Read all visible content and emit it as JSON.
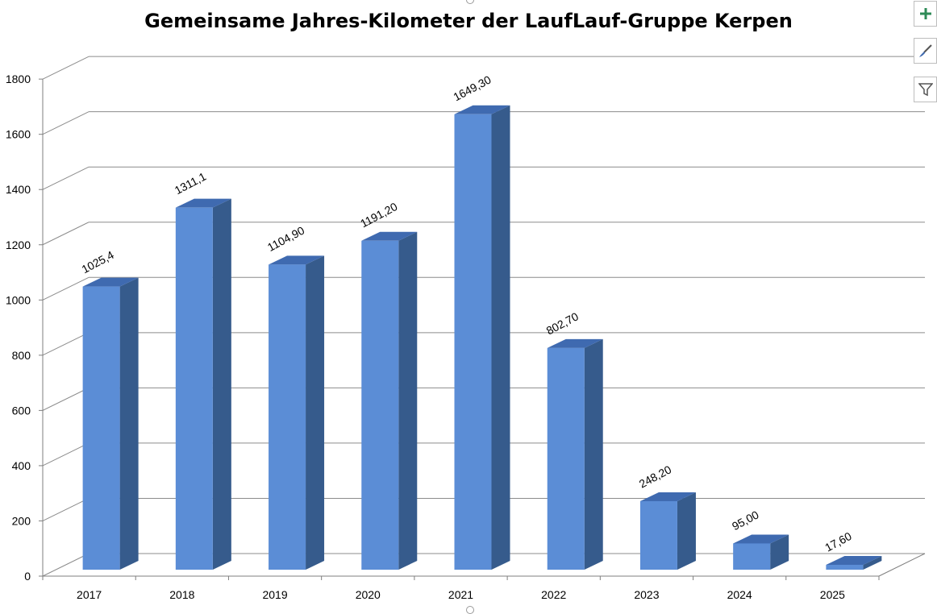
{
  "chart_data": {
    "type": "bar",
    "title": "Gemeinsame Jahres-Kilometer der LaufLauf-Gruppe Kerpen",
    "categories": [
      "2017",
      "2018",
      "2019",
      "2020",
      "2021",
      "2022",
      "2023",
      "2024",
      "2025"
    ],
    "values": [
      1025.4,
      1311.1,
      1104.9,
      1191.2,
      1649.3,
      802.7,
      248.2,
      95.0,
      17.6
    ],
    "data_labels": [
      "1025,4",
      "1311,1",
      "1104,90",
      "1191,20",
      "1649,30",
      "802,70",
      "248,20",
      "95,00",
      "17,60"
    ],
    "xlabel": "",
    "ylabel": "",
    "ylim": [
      0,
      1800
    ],
    "yticks": [
      0,
      200,
      400,
      600,
      800,
      1000,
      1200,
      1400,
      1600,
      1800
    ],
    "grid": true,
    "style": "3d-column",
    "colors": {
      "front": "#5b8dd6",
      "side": "#365b8c",
      "top": "#3f6ab0",
      "grid": "#8c8c8c"
    }
  },
  "toolbar": {
    "add_icon": "plus-icon",
    "style_icon": "brush-icon",
    "filter_icon": "filter-icon"
  }
}
